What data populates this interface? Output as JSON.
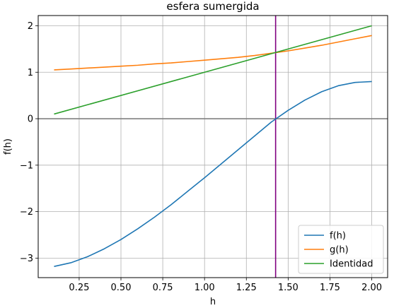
{
  "chart_data": {
    "type": "line",
    "title": "esfera sumergida",
    "xlabel": "h",
    "ylabel": "f(h)",
    "xlim": [
      0.005,
      2.095
    ],
    "ylim": [
      -3.42,
      2.22
    ],
    "xticks": [
      0.25,
      0.5,
      0.75,
      1.0,
      1.25,
      1.5,
      1.75,
      2.0
    ],
    "xtick_labels": [
      "0.25",
      "0.50",
      "0.75",
      "1.00",
      "1.25",
      "1.50",
      "1.75",
      "2.00"
    ],
    "yticks": [
      -3,
      -2,
      -1,
      0,
      1,
      2
    ],
    "ytick_labels": [
      "−3",
      "−2",
      "−1",
      "0",
      "1",
      "2"
    ],
    "grid": true,
    "legend_position": "bottom-right",
    "series": [
      {
        "name": "f(h)",
        "color": "#1f77b4",
        "x": [
          0.1,
          0.2,
          0.3,
          0.4,
          0.5,
          0.6,
          0.7,
          0.8,
          0.9,
          1.0,
          1.1,
          1.2,
          1.3,
          1.4,
          1.5,
          1.6,
          1.7,
          1.8,
          1.9,
          2.0
        ],
        "y": [
          -3.18,
          -3.1,
          -2.97,
          -2.8,
          -2.6,
          -2.37,
          -2.12,
          -1.85,
          -1.56,
          -1.27,
          -0.97,
          -0.67,
          -0.37,
          -0.07,
          0.18,
          0.4,
          0.58,
          0.71,
          0.78,
          0.8
        ]
      },
      {
        "name": "g(h)",
        "color": "#ff7f0e",
        "x": [
          0.1,
          0.2,
          0.3,
          0.4,
          0.5,
          0.6,
          0.7,
          0.8,
          0.9,
          1.0,
          1.1,
          1.2,
          1.3,
          1.4,
          1.5,
          1.6,
          1.7,
          1.8,
          1.9,
          2.0
        ],
        "y": [
          1.05,
          1.07,
          1.09,
          1.11,
          1.13,
          1.15,
          1.18,
          1.2,
          1.23,
          1.26,
          1.29,
          1.32,
          1.36,
          1.41,
          1.46,
          1.52,
          1.58,
          1.65,
          1.72,
          1.79
        ]
      },
      {
        "name": "Identidad",
        "color": "#2ca02c",
        "x": [
          0.1,
          2.0
        ],
        "y": [
          0.1,
          2.0
        ]
      }
    ],
    "hline": {
      "y": 0,
      "color": "#808080"
    },
    "vline": {
      "x": 1.425,
      "color": "#800080"
    }
  }
}
